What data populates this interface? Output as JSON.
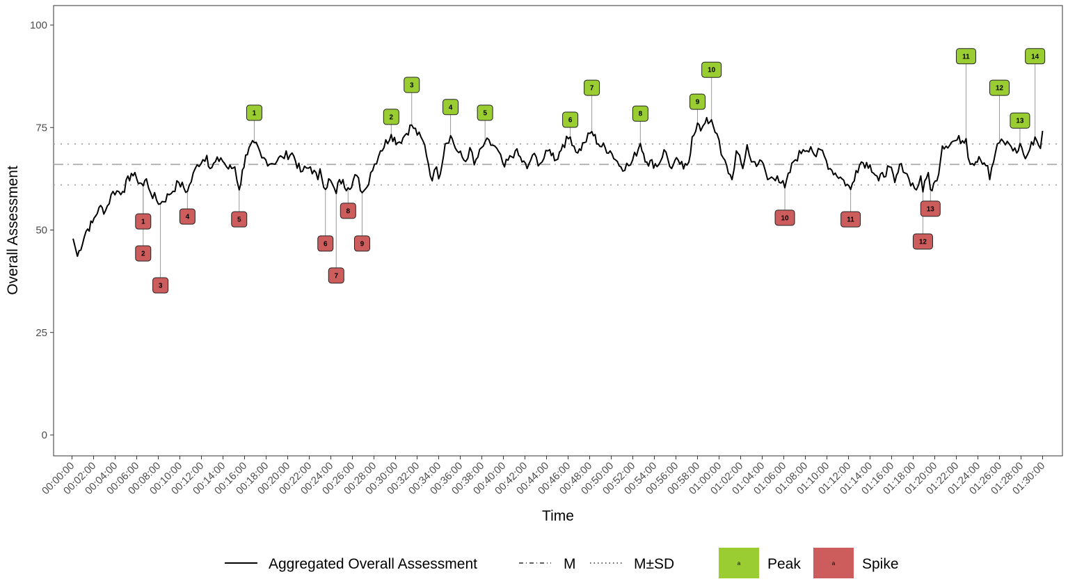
{
  "chart_data": {
    "type": "line",
    "xlabel": "Time",
    "ylabel": "Overall Assessment",
    "ylim": [
      0,
      100
    ],
    "xlim_minutes": [
      0,
      90
    ],
    "y_ticks": [
      0,
      25,
      50,
      75,
      100
    ],
    "x_ticks": [
      "00:00:00",
      "00:02:00",
      "00:04:00",
      "00:06:00",
      "00:08:00",
      "00:10:00",
      "00:12:00",
      "00:14:00",
      "00:16:00",
      "00:18:00",
      "00:20:00",
      "00:22:00",
      "00:24:00",
      "00:26:00",
      "00:28:00",
      "00:30:00",
      "00:32:00",
      "00:34:00",
      "00:36:00",
      "00:38:00",
      "00:40:00",
      "00:42:00",
      "00:44:00",
      "00:46:00",
      "00:48:00",
      "00:50:00",
      "00:52:00",
      "00:54:00",
      "00:56:00",
      "00:58:00",
      "01:00:00",
      "01:02:00",
      "01:04:00",
      "01:06:00",
      "01:08:00",
      "01:10:00",
      "01:12:00",
      "01:14:00",
      "01:16:00",
      "01:18:00",
      "01:20:00",
      "01:22:00",
      "01:24:00",
      "01:26:00",
      "01:28:00",
      "01:30:00"
    ],
    "mean": 66,
    "sd": 5,
    "grid": false,
    "series": [
      {
        "name": "Aggregated Overall Assessment",
        "x_minutes": [
          0.1,
          0.5,
          1.3,
          1.9,
          2.5,
          3.1,
          3.8,
          4.7,
          5.5,
          6.0,
          6.6,
          6.9,
          7.3,
          8.2,
          9.0,
          9.9,
          10.7,
          11.6,
          12.5,
          12.8,
          13.8,
          14.5,
          15.1,
          15.5,
          16.1,
          16.9,
          17.6,
          18.5,
          19.5,
          20.4,
          21.2,
          22.1,
          22.8,
          23.0,
          23.5,
          23.8,
          24.5,
          24.8,
          25.6,
          26.4,
          26.9,
          27.3,
          27.7,
          28.6,
          29.6,
          30.2,
          30.7,
          31.5,
          32.7,
          33.4,
          33.8,
          34.0,
          34.6,
          35.1,
          35.7,
          36.5,
          36.9,
          37.3,
          38.3,
          39.2,
          40.1,
          41.1,
          42.2,
          42.7,
          43.4,
          44.3,
          44.9,
          45.5,
          46.2,
          46.9,
          47.5,
          48.2,
          48.8,
          49.9,
          50.9,
          51.8,
          52.7,
          53.3,
          54.4,
          54.9,
          55.6,
          56.2,
          56.7,
          57.2,
          57.5,
          58.0,
          58.3,
          58.7,
          59.3,
          59.8,
          60.2,
          61.2,
          61.6,
          62.2,
          62.6,
          63.0,
          64.1,
          64.5,
          65.4,
          66.1,
          66.9,
          67.8,
          68.5,
          69.0,
          69.4,
          70.3,
          71.4,
          72.2,
          72.7,
          73.2,
          74.0,
          74.8,
          75.8,
          76.3,
          76.9,
          77.6,
          78.3,
          78.7,
          78.9,
          79.4,
          79.6,
          80.2,
          80.7,
          81.9,
          82.9,
          83.1,
          83.5,
          84.1,
          84.9,
          85.1,
          85.8,
          86.0,
          86.9,
          87.6,
          87.9,
          88.4,
          88.8,
          89.3,
          89.8,
          90.0
        ],
        "y": [
          47.9,
          43.6,
          49.7,
          51.8,
          55.5,
          54.7,
          59.4,
          59.4,
          63.8,
          62.5,
          60.8,
          62.5,
          59.0,
          56.4,
          58.6,
          61.6,
          59.4,
          65.9,
          68.2,
          65.0,
          67.6,
          64.9,
          65.4,
          59.8,
          68.3,
          71.3,
          67.6,
          66.2,
          67.8,
          68.8,
          64.2,
          65.4,
          62.3,
          64.9,
          59.9,
          62.5,
          58.9,
          62.3,
          60.3,
          63.3,
          59.1,
          60.3,
          64.0,
          69.3,
          73.3,
          71.3,
          72.5,
          75.6,
          70.8,
          62.0,
          65.4,
          62.5,
          71.0,
          73.0,
          69.3,
          66.7,
          70.1,
          65.9,
          71.5,
          70.5,
          65.4,
          69.3,
          65.0,
          68.3,
          66.2,
          69.6,
          67.1,
          70.8,
          72.7,
          68.8,
          71.3,
          74.0,
          71.0,
          69.3,
          65.4,
          65.9,
          71.1,
          66.6,
          65.9,
          69.6,
          65.0,
          67.1,
          64.9,
          66.6,
          72.7,
          76.1,
          74.2,
          76.1,
          76.9,
          73.5,
          68.4,
          62.3,
          69.3,
          65.0,
          70.8,
          66.6,
          66.2,
          62.3,
          63.2,
          60.3,
          66.7,
          69.6,
          70.3,
          67.9,
          69.6,
          65.0,
          62.5,
          59.9,
          64.5,
          66.6,
          65.9,
          62.0,
          65.4,
          61.6,
          66.2,
          62.5,
          59.8,
          63.2,
          59.3,
          64.0,
          59.9,
          62.0,
          70.5,
          71.8,
          72.3,
          67.6,
          66.2,
          67.9,
          65.7,
          62.3,
          71.0,
          71.3,
          71.0,
          68.8,
          71.1,
          67.4,
          69.6,
          72.7,
          69.9,
          74.2
        ]
      }
    ],
    "peaks": [
      {
        "label": "1",
        "x_minutes": 16.9,
        "y": 71.3,
        "label_y": 78.6
      },
      {
        "label": "2",
        "x_minutes": 29.6,
        "y": 73.3,
        "label_y": 77.6
      },
      {
        "label": "3",
        "x_minutes": 31.5,
        "y": 75.6,
        "label_y": 85.4
      },
      {
        "label": "4",
        "x_minutes": 35.1,
        "y": 73.0,
        "label_y": 80.0
      },
      {
        "label": "5",
        "x_minutes": 38.3,
        "y": 71.5,
        "label_y": 78.6
      },
      {
        "label": "6",
        "x_minutes": 46.2,
        "y": 72.7,
        "label_y": 76.9
      },
      {
        "label": "7",
        "x_minutes": 48.2,
        "y": 74.0,
        "label_y": 84.7
      },
      {
        "label": "8",
        "x_minutes": 52.7,
        "y": 71.1,
        "label_y": 78.4
      },
      {
        "label": "9",
        "x_minutes": 58.0,
        "y": 76.1,
        "label_y": 81.3
      },
      {
        "label": "10",
        "x_minutes": 59.3,
        "y": 76.9,
        "label_y": 89.1
      },
      {
        "label": "11",
        "x_minutes": 82.9,
        "y": 72.3,
        "label_y": 92.4
      },
      {
        "label": "12",
        "x_minutes": 86.0,
        "y": 71.3,
        "label_y": 84.7
      },
      {
        "label": "13",
        "x_minutes": 87.9,
        "y": 71.1,
        "label_y": 76.7
      },
      {
        "label": "14",
        "x_minutes": 89.3,
        "y": 72.7,
        "label_y": 92.4
      }
    ],
    "spikes": [
      {
        "label": "1",
        "x_minutes": 6.6,
        "y": 60.8,
        "label_y": 52.1
      },
      {
        "label": "2",
        "x_minutes": 6.6,
        "y": 60.8,
        "label_y": 44.3
      },
      {
        "label": "3",
        "x_minutes": 8.2,
        "y": 56.4,
        "label_y": 36.5
      },
      {
        "label": "4",
        "x_minutes": 10.7,
        "y": 59.4,
        "label_y": 53.3
      },
      {
        "label": "5",
        "x_minutes": 15.5,
        "y": 59.8,
        "label_y": 52.6
      },
      {
        "label": "6",
        "x_minutes": 23.5,
        "y": 59.9,
        "label_y": 46.7
      },
      {
        "label": "7",
        "x_minutes": 24.5,
        "y": 58.9,
        "label_y": 38.9
      },
      {
        "label": "8",
        "x_minutes": 25.6,
        "y": 60.3,
        "label_y": 54.7
      },
      {
        "label": "9",
        "x_minutes": 26.9,
        "y": 59.1,
        "label_y": 46.7
      },
      {
        "label": "10",
        "x_minutes": 66.1,
        "y": 60.3,
        "label_y": 53.0
      },
      {
        "label": "11",
        "x_minutes": 72.2,
        "y": 59.9,
        "label_y": 52.6
      },
      {
        "label": "12",
        "x_minutes": 78.9,
        "y": 59.3,
        "label_y": 47.2
      },
      {
        "label": "13",
        "x_minutes": 79.6,
        "y": 59.9,
        "label_y": 55.2
      }
    ],
    "legend": {
      "placement": "bottom",
      "line_label": "Aggregated Overall Assessment",
      "mean_label": "M",
      "sd_label": "M±SD",
      "peak_label": "Peak",
      "spike_label": "Spike",
      "key_glyph": "a"
    },
    "colors": {
      "peak": "#9ACD32",
      "spike": "#CD5C5C",
      "line": "#000000",
      "ref": "#aaaaaa"
    }
  }
}
